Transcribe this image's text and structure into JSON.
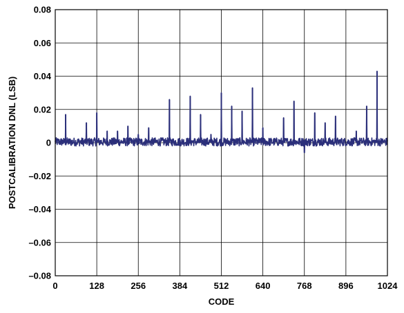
{
  "chart_data": {
    "type": "line",
    "title": "",
    "xlabel": "CODE",
    "ylabel": "POSTCALIBRATION DNL (LSB)",
    "xlim": [
      0,
      1024
    ],
    "ylim": [
      -0.08,
      0.08
    ],
    "x_ticks": [
      0,
      128,
      256,
      384,
      512,
      640,
      768,
      896,
      1024
    ],
    "x_tick_labels": [
      "0",
      "128",
      "256",
      "384",
      "512",
      "640",
      "768",
      "896",
      "1024"
    ],
    "y_ticks": [
      0.08,
      0.06,
      0.04,
      0.02,
      0,
      -0.02,
      -0.04,
      -0.06,
      -0.08
    ],
    "y_tick_labels": [
      "0.08",
      "0.06",
      "0.04",
      "0.02",
      "0",
      "–0.02",
      "–0.04",
      "–0.06",
      "–0.08"
    ],
    "grid": true,
    "legend": "none",
    "line_color": "#2b2f7a",
    "noise_band": [
      -0.002,
      0.003
    ],
    "series": [
      {
        "x": [
          32,
          96,
          128,
          160,
          192,
          224,
          256,
          288,
          352,
          416,
          448,
          480,
          512,
          544,
          576,
          608,
          640,
          704,
          736,
          768,
          800,
          832,
          864,
          928,
          960,
          992
        ],
        "values": [
          0.017,
          0.012,
          0.018,
          0.007,
          0.007,
          0.01,
          0.005,
          0.009,
          0.026,
          0.028,
          0.017,
          0.005,
          0.03,
          0.022,
          0.019,
          0.033,
          0.009,
          0.015,
          0.025,
          -0.006,
          0.018,
          0.012,
          0.016,
          0.007,
          0.022,
          0.043
        ]
      }
    ]
  }
}
